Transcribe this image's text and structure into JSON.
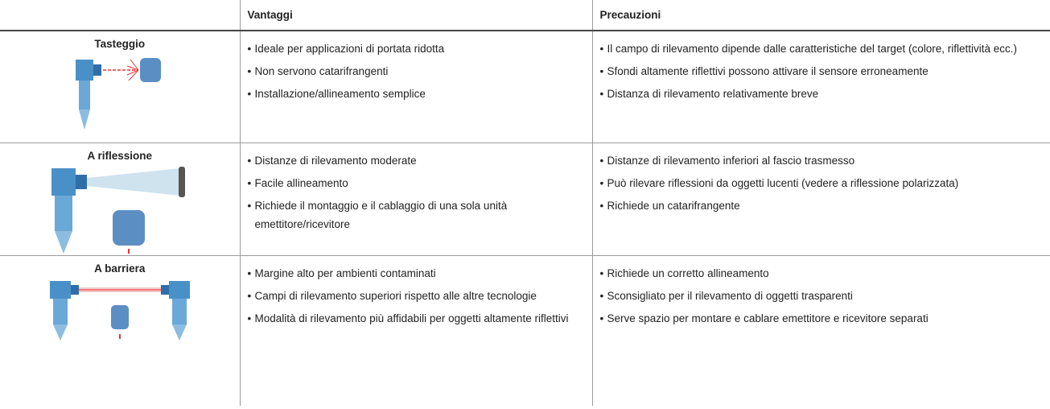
{
  "table": {
    "headers": [
      "Vantaggi",
      "Precauzioni"
    ],
    "rows": [
      {
        "title": "Tasteggio",
        "advantages": [
          "Ideale per applicazioni di portata ridotta",
          "Non servono catarifrangenti",
          "Installazione/allineamento semplice"
        ],
        "precautions": [
          "Il campo di rilevamento dipende dalle caratteristiche del target (colore, riflettività ecc.)",
          "Sfondi altamente riflettivi possono attivare il sensore erroneamente",
          "Distanza di rilevamento relativamente breve"
        ]
      },
      {
        "title": "A riflessione",
        "advantages": [
          "Distanze di rilevamento moderate",
          "Facile allineamento",
          "Richiede il montaggio e il cablaggio di una sola unità emettitore/ricevitore"
        ],
        "precautions": [
          "Distanze di rilevamento inferiori al fascio trasmesso",
          "Può rilevare riflessioni da oggetti lucenti (vedere a riflessione polarizzata)",
          "Richiede un catarifrangente"
        ]
      },
      {
        "title": "A barriera",
        "advantages": [
          "Margine alto per ambienti contaminati",
          "Campi di rilevamento superiori rispetto alle altre tecnologie",
          "Modalità di rilevamento più affidabili per oggetti altamente riflettivi"
        ],
        "precautions": [
          "Richiede un corretto allineamento",
          "Sconsigliato per il rilevamento di oggetti trasparenti",
          "Serve spazio per montare e cablare emettitore e ricevitore separati"
        ]
      }
    ]
  }
}
